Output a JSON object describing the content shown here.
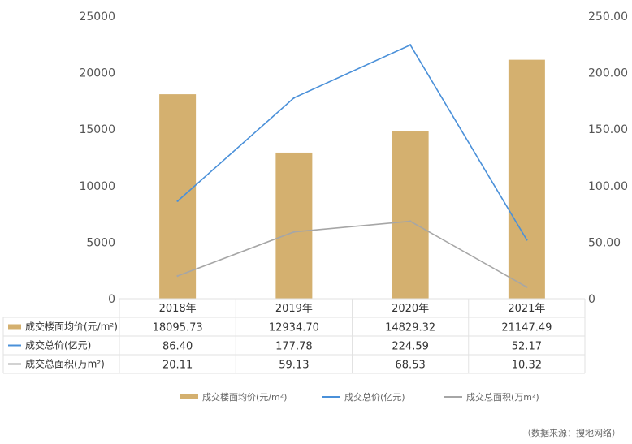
{
  "chart_data": {
    "type": "bar",
    "categories": [
      "2018年",
      "2019年",
      "2020年",
      "2021年"
    ],
    "series": [
      {
        "name": "成交楼面均价(元/m²)",
        "type": "bar",
        "axis": "left",
        "values": [
          18095.73,
          12934.7,
          14829.32,
          21147.49
        ],
        "labels": [
          "18095.73",
          "12934.70",
          "14829.32",
          "21147.49"
        ],
        "color": "#d4b06f"
      },
      {
        "name": "成交总价(亿元)",
        "type": "line",
        "axis": "right",
        "values": [
          86.4,
          177.78,
          224.59,
          52.17
        ],
        "labels": [
          "86.40",
          "177.78",
          "224.59",
          "52.17"
        ],
        "color": "#4a90d9"
      },
      {
        "name": "成交总面积(万m²)",
        "type": "line",
        "axis": "right",
        "values": [
          20.11,
          59.13,
          68.53,
          10.32
        ],
        "labels": [
          "20.11",
          "59.13",
          "68.53",
          "10.32"
        ],
        "color": "#a6a6a6"
      }
    ],
    "y_left": {
      "range": [
        0,
        25000
      ],
      "ticks": [
        "0",
        "5000",
        "10000",
        "15000",
        "20000",
        "25000"
      ]
    },
    "y_right": {
      "range": [
        0,
        250
      ],
      "ticks": [
        "0",
        "50.00",
        "100.00",
        "150.00",
        "200.00",
        "250.00"
      ]
    },
    "grid": false,
    "legend": "bottom"
  },
  "source_note": "（数据来源：搜地网络）"
}
